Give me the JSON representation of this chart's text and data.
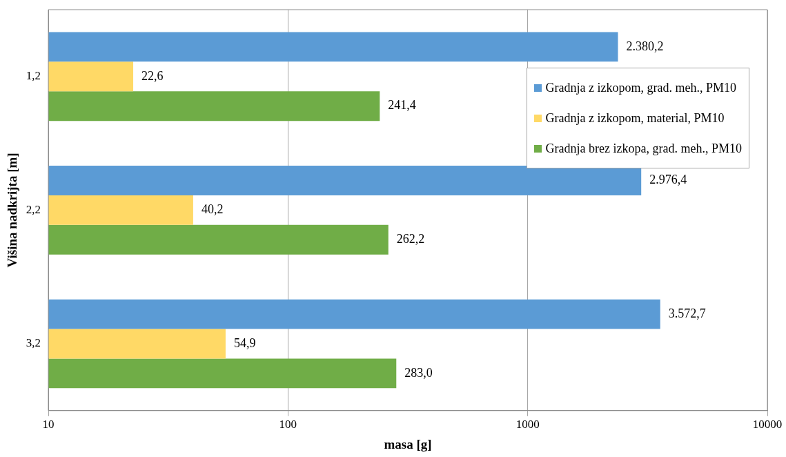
{
  "chart_data": {
    "type": "bar",
    "orientation": "horizontal",
    "xlabel": "masa [g]",
    "ylabel": "Višina nadkrijta [m]",
    "categories": [
      "1,2",
      "2,2",
      "3,2"
    ],
    "series": [
      {
        "name": "Gradnja z izkopom, grad. meh., PM10",
        "color": "#5b9bd5",
        "values": [
          2380.2,
          2976.4,
          3572.7
        ],
        "value_labels": [
          "2.380,2",
          "2.976,4",
          "3.572,7"
        ]
      },
      {
        "name": "Gradnja z izkopom, material, PM10",
        "color": "#ffd966",
        "values": [
          22.6,
          40.2,
          54.9
        ],
        "value_labels": [
          "22,6",
          "40,2",
          "54,9"
        ]
      },
      {
        "name": "Gradnja brez izkopa, grad. meh., PM10",
        "color": "#70ad47",
        "values": [
          241.4,
          262.2,
          283.0
        ],
        "value_labels": [
          "241,4",
          "262,2",
          "283,0"
        ]
      }
    ],
    "log": "x",
    "xlim": [
      10,
      10000
    ],
    "xticks": [
      10,
      100,
      1000,
      10000
    ],
    "grid": "x",
    "legend": "top right"
  }
}
